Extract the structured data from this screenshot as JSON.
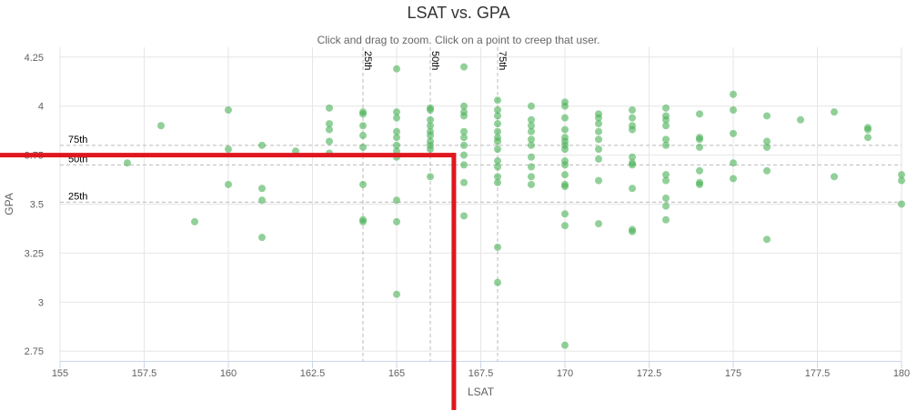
{
  "chart_data": {
    "type": "scatter",
    "title": "LSAT vs. GPA",
    "subtitle": "Click and drag to zoom. Click on a point to creep that user.",
    "xlabel": "LSAT",
    "ylabel": "GPA",
    "xlim": [
      155,
      180
    ],
    "ylim": [
      2.7,
      4.3
    ],
    "x_ticks": [
      155,
      157.5,
      160,
      162.5,
      165,
      167.5,
      170,
      172.5,
      175,
      177.5,
      180
    ],
    "x_tick_labels": [
      "155",
      "157.5",
      "160",
      "162.5",
      "165",
      "167.5",
      "170",
      "172.5",
      "175",
      "177.5",
      "180"
    ],
    "y_ticks": [
      2.75,
      3,
      3.25,
      3.5,
      3.75,
      4,
      4.25
    ],
    "y_tick_labels": [
      "2.75",
      "3",
      "3.25",
      "3.5",
      "3.75",
      "4",
      "4.25"
    ],
    "grid": true,
    "point_color": "#4db35b",
    "vertical_plot_lines": [
      {
        "label": "25th",
        "x": 164
      },
      {
        "label": "50th",
        "x": 166
      },
      {
        "label": "75th",
        "x": 168
      }
    ],
    "horizontal_plot_lines": [
      {
        "label": "75th",
        "y": 3.8
      },
      {
        "label": "50th",
        "y": 3.7
      },
      {
        "label": "25th",
        "y": 3.51
      }
    ],
    "overlay": {
      "color": "#e0161e",
      "lsat": 166.7,
      "gpa": 3.75
    },
    "points": [
      [
        157,
        3.71
      ],
      [
        158,
        3.9
      ],
      [
        159,
        3.41
      ],
      [
        160,
        3.98
      ],
      [
        160,
        3.78
      ],
      [
        160,
        3.6
      ],
      [
        161,
        3.8
      ],
      [
        161,
        3.58
      ],
      [
        161,
        3.52
      ],
      [
        161,
        3.33
      ],
      [
        162,
        3.77
      ],
      [
        163,
        3.99
      ],
      [
        163,
        3.91
      ],
      [
        163,
        3.88
      ],
      [
        163,
        3.82
      ],
      [
        163,
        3.76
      ],
      [
        164,
        3.97
      ],
      [
        164,
        3.96
      ],
      [
        164,
        3.9
      ],
      [
        164,
        3.85
      ],
      [
        164,
        3.79
      ],
      [
        164,
        3.6
      ],
      [
        164,
        3.42
      ],
      [
        164,
        3.41
      ],
      [
        165,
        4.19
      ],
      [
        165,
        3.97
      ],
      [
        165,
        3.94
      ],
      [
        165,
        3.87
      ],
      [
        165,
        3.84
      ],
      [
        165,
        3.8
      ],
      [
        165,
        3.77
      ],
      [
        165,
        3.74
      ],
      [
        165,
        3.52
      ],
      [
        165,
        3.41
      ],
      [
        165,
        3.04
      ],
      [
        166,
        3.99
      ],
      [
        166,
        3.98
      ],
      [
        166,
        3.93
      ],
      [
        166,
        3.9
      ],
      [
        166,
        3.87
      ],
      [
        166,
        3.85
      ],
      [
        166,
        3.82
      ],
      [
        166,
        3.8
      ],
      [
        166,
        3.78
      ],
      [
        166,
        3.64
      ],
      [
        167,
        4.2
      ],
      [
        167,
        4.0
      ],
      [
        167,
        3.97
      ],
      [
        167,
        3.95
      ],
      [
        167,
        3.87
      ],
      [
        167,
        3.84
      ],
      [
        167,
        3.8
      ],
      [
        167,
        3.75
      ],
      [
        167,
        3.7
      ],
      [
        167,
        3.61
      ],
      [
        167,
        3.44
      ],
      [
        168,
        4.03
      ],
      [
        168,
        3.98
      ],
      [
        168,
        3.95
      ],
      [
        168,
        3.91
      ],
      [
        168,
        3.87
      ],
      [
        168,
        3.84
      ],
      [
        168,
        3.82
      ],
      [
        168,
        3.78
      ],
      [
        168,
        3.72
      ],
      [
        168,
        3.69
      ],
      [
        168,
        3.64
      ],
      [
        168,
        3.61
      ],
      [
        168,
        3.28
      ],
      [
        168,
        3.1
      ],
      [
        169,
        4.0
      ],
      [
        169,
        3.93
      ],
      [
        169,
        3.9
      ],
      [
        169,
        3.87
      ],
      [
        169,
        3.83
      ],
      [
        169,
        3.8
      ],
      [
        169,
        3.74
      ],
      [
        169,
        3.69
      ],
      [
        169,
        3.64
      ],
      [
        169,
        3.6
      ],
      [
        170,
        4.02
      ],
      [
        170,
        4.0
      ],
      [
        170,
        3.94
      ],
      [
        170,
        3.88
      ],
      [
        170,
        3.84
      ],
      [
        170,
        3.82
      ],
      [
        170,
        3.8
      ],
      [
        170,
        3.78
      ],
      [
        170,
        3.72
      ],
      [
        170,
        3.7
      ],
      [
        170,
        3.65
      ],
      [
        170,
        3.6
      ],
      [
        170,
        3.59
      ],
      [
        170,
        3.45
      ],
      [
        170,
        3.39
      ],
      [
        170,
        2.78
      ],
      [
        171,
        3.96
      ],
      [
        171,
        3.94
      ],
      [
        171,
        3.91
      ],
      [
        171,
        3.87
      ],
      [
        171,
        3.83
      ],
      [
        171,
        3.78
      ],
      [
        171,
        3.73
      ],
      [
        171,
        3.62
      ],
      [
        171,
        3.4
      ],
      [
        172,
        3.98
      ],
      [
        172,
        3.94
      ],
      [
        172,
        3.9
      ],
      [
        172,
        3.88
      ],
      [
        172,
        3.74
      ],
      [
        172,
        3.71
      ],
      [
        172,
        3.7
      ],
      [
        172,
        3.58
      ],
      [
        172,
        3.37
      ],
      [
        172,
        3.36
      ],
      [
        173,
        3.99
      ],
      [
        173,
        3.95
      ],
      [
        173,
        3.93
      ],
      [
        173,
        3.9
      ],
      [
        173,
        3.83
      ],
      [
        173,
        3.8
      ],
      [
        173,
        3.65
      ],
      [
        173,
        3.62
      ],
      [
        173,
        3.53
      ],
      [
        173,
        3.49
      ],
      [
        173,
        3.42
      ],
      [
        174,
        3.96
      ],
      [
        174,
        3.84
      ],
      [
        174,
        3.83
      ],
      [
        174,
        3.79
      ],
      [
        174,
        3.67
      ],
      [
        174,
        3.61
      ],
      [
        174,
        3.6
      ],
      [
        175,
        4.06
      ],
      [
        175,
        3.98
      ],
      [
        175,
        3.86
      ],
      [
        175,
        3.71
      ],
      [
        175,
        3.63
      ],
      [
        176,
        3.95
      ],
      [
        176,
        3.82
      ],
      [
        176,
        3.79
      ],
      [
        176,
        3.67
      ],
      [
        176,
        3.32
      ],
      [
        177,
        3.93
      ],
      [
        178,
        3.97
      ],
      [
        178,
        3.64
      ],
      [
        179,
        3.89
      ],
      [
        179,
        3.88
      ],
      [
        179,
        3.84
      ],
      [
        180,
        3.65
      ],
      [
        180,
        3.62
      ],
      [
        180,
        3.5
      ]
    ]
  }
}
